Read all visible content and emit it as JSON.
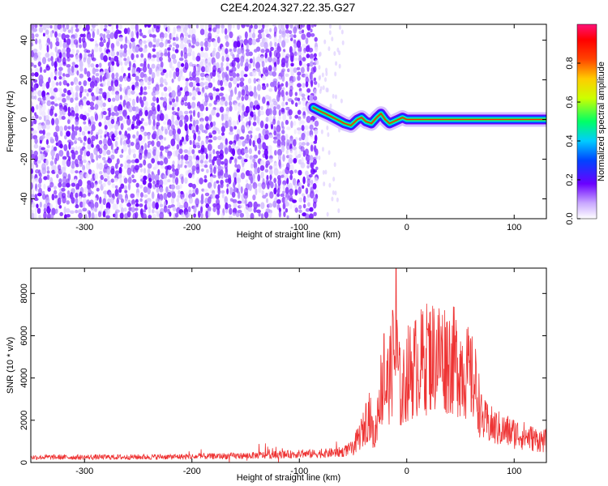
{
  "title": "C2E4.2024.327.22.35.G27",
  "chart_data": [
    {
      "type": "heatmap",
      "title": "C2E4.2024.327.22.35.G27",
      "xlabel": "Height of straight line (km)",
      "ylabel": "Frequency (Hz)",
      "xlim": [
        -350,
        130
      ],
      "ylim": [
        -50,
        48
      ],
      "xticks": [
        -300,
        -200,
        -100,
        0,
        100
      ],
      "yticks": [
        -40,
        -20,
        0,
        20,
        40
      ],
      "noise_region_x": [
        -350,
        -85
      ],
      "trace": {
        "description_values": "dominant frequency vs height",
        "x": [
          -87,
          -80,
          -72,
          -65,
          -58,
          -52,
          -46,
          -42,
          -38,
          -33,
          -28,
          -24,
          -20,
          -16,
          -12,
          -8,
          -4,
          0,
          130
        ],
        "y": [
          6,
          4,
          2,
          0,
          -2,
          -3,
          0,
          1,
          -1,
          -2,
          1,
          3,
          0,
          -2,
          -1,
          0,
          1,
          0,
          0
        ]
      },
      "colorbar": {
        "label": "Normalized spectral amplitude",
        "range": [
          0,
          1
        ],
        "ticks": [
          0.0,
          0.2,
          0.4,
          0.6,
          0.8
        ]
      },
      "grid": false
    },
    {
      "type": "line",
      "xlabel": "Height of straight line (km)",
      "ylabel": "SNR (10 * v/v)",
      "xlim": [
        -350,
        130
      ],
      "ylim": [
        0,
        9200
      ],
      "xticks": [
        -300,
        -200,
        -100,
        0,
        100
      ],
      "yticks": [
        0,
        2000,
        4000,
        6000,
        8000
      ],
      "color": "#ee3333",
      "series": [
        {
          "x": [
            -350,
            -300,
            -250,
            -200,
            -150,
            -100,
            -80,
            -60,
            -50,
            -40,
            -35,
            -30,
            -25,
            -20,
            -15,
            -10,
            -5,
            0,
            10,
            20,
            30,
            40,
            50,
            60,
            65,
            70,
            80,
            90,
            100,
            110,
            120,
            130
          ],
          "y": [
            250,
            250,
            260,
            280,
            320,
            400,
            420,
            500,
            700,
            1600,
            2400,
            1000,
            3500,
            3300,
            4200,
            5200,
            3000,
            4200,
            4600,
            5000,
            5100,
            4900,
            4600,
            4000,
            3500,
            2000,
            1700,
            1500,
            1400,
            1250,
            1100,
            1000
          ],
          "peaks": [
            {
              "x": -10,
              "y": 9200
            },
            {
              "x": -21,
              "y": 6100
            },
            {
              "x": -13,
              "y": 7200
            },
            {
              "x": 19,
              "y": 6300
            },
            {
              "x": -38,
              "y": 2800
            }
          ]
        }
      ],
      "grid": false
    }
  ]
}
